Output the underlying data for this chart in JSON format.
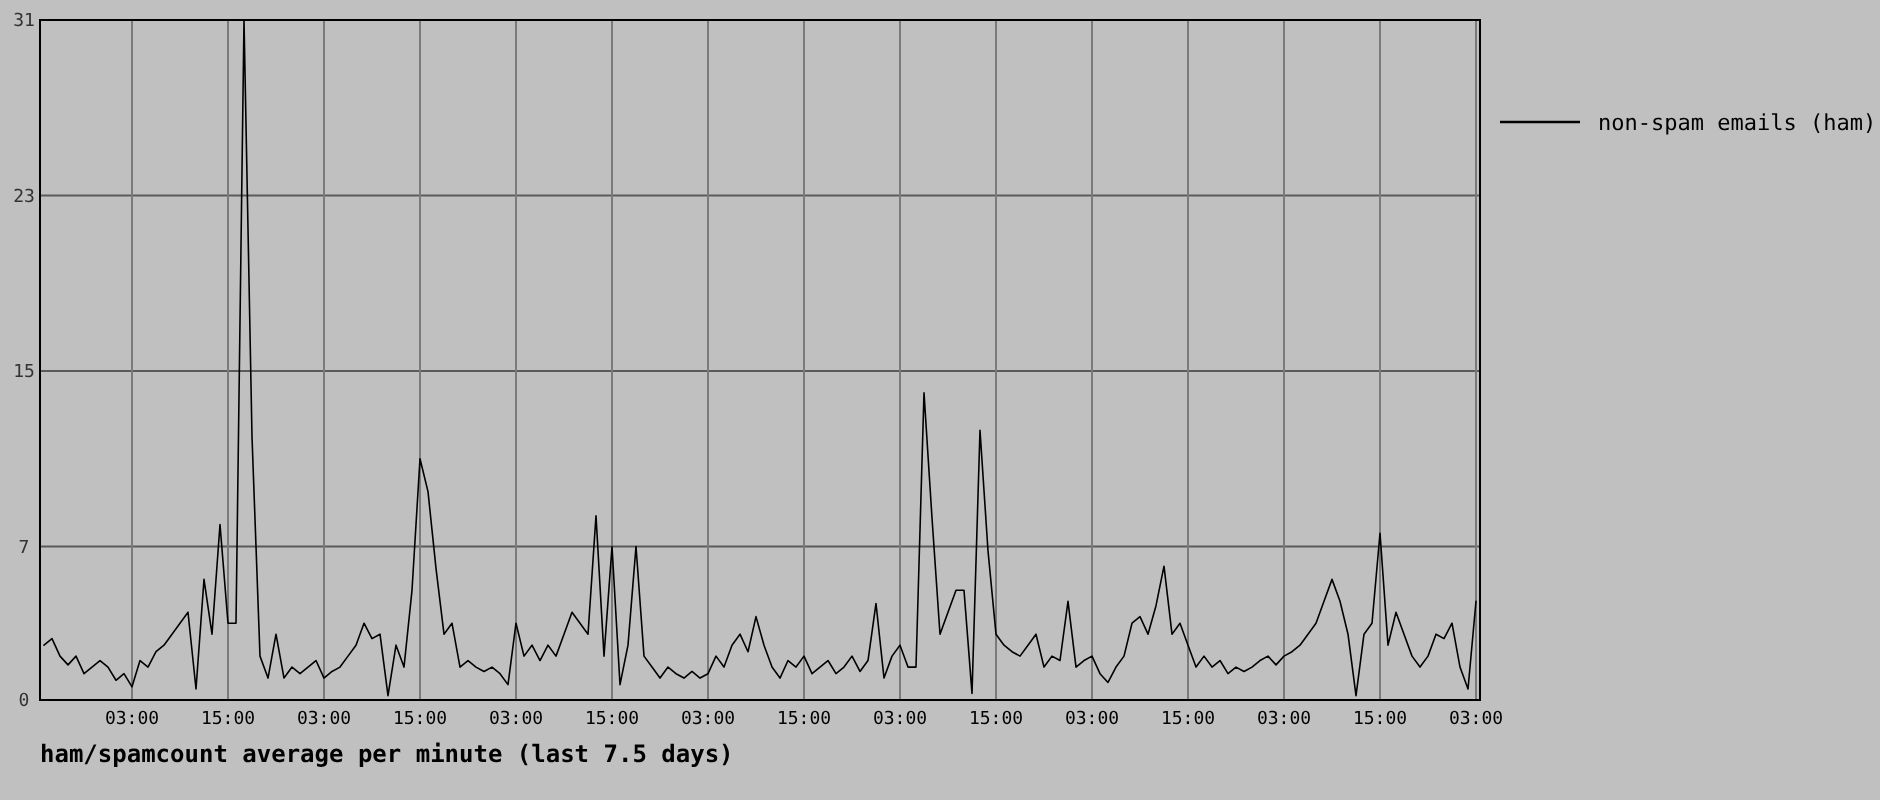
{
  "chart_data": {
    "type": "line",
    "title": "ham/spamcount average per minute (last 7.5 days)",
    "categories": [
      null,
      null,
      null,
      null,
      null,
      null,
      null,
      null,
      null,
      null,
      null,
      "03:00",
      null,
      null,
      null,
      null,
      null,
      null,
      null,
      null,
      null,
      null,
      null,
      "15:00",
      null,
      null,
      null,
      null,
      null,
      null,
      null,
      null,
      null,
      null,
      null,
      "03:00",
      null,
      null,
      null,
      null,
      null,
      null,
      null,
      null,
      null,
      null,
      null,
      "15:00",
      null,
      null,
      null,
      null,
      null,
      null,
      null,
      null,
      null,
      null,
      null,
      "03:00",
      null,
      null,
      null,
      null,
      null,
      null,
      null,
      null,
      null,
      null,
      null,
      "15:00",
      null,
      null,
      null,
      null,
      null,
      null,
      null,
      null,
      null,
      null,
      null,
      "03:00",
      null,
      null,
      null,
      null,
      null,
      null,
      null,
      null,
      null,
      null,
      null,
      "15:00",
      null,
      null,
      null,
      null,
      null,
      null,
      null,
      null,
      null,
      null,
      null,
      "03:00",
      null,
      null,
      null,
      null,
      null,
      null,
      null,
      null,
      null,
      null,
      null,
      "15:00",
      null,
      null,
      null,
      null,
      null,
      null,
      null,
      null,
      null,
      null,
      null,
      "03:00",
      null,
      null,
      null,
      null,
      null,
      null,
      null,
      null,
      null,
      null,
      null,
      "15:00",
      null,
      null,
      null,
      null,
      null,
      null,
      null,
      null,
      null,
      null,
      null,
      "03:00",
      null,
      null,
      null,
      null,
      null,
      null,
      null,
      null,
      null,
      null,
      null,
      "15:00",
      null,
      null,
      null,
      null,
      null,
      null,
      null,
      null,
      null,
      null,
      null,
      "03:00"
    ],
    "series": [
      {
        "name": "non-spam emails (ham)",
        "color": "#000000",
        "values": [
          2.5,
          2.8,
          2,
          1.6,
          2,
          1.2,
          1.5,
          1.8,
          1.5,
          0.9,
          1.2,
          0.6,
          1.8,
          1.5,
          2.2,
          2.5,
          3,
          3.5,
          4,
          0.5,
          5.5,
          3,
          8,
          3.5,
          3.5,
          31,
          12,
          2,
          1,
          3,
          1,
          1.5,
          1.2,
          1.5,
          1.8,
          1,
          1.3,
          1.5,
          2,
          2.5,
          3.5,
          2.8,
          3,
          0.2,
          2.5,
          1.5,
          5,
          11,
          9.5,
          6,
          3,
          3.5,
          1.5,
          1.8,
          1.5,
          1.3,
          1.5,
          1.2,
          0.7,
          3.5,
          2,
          2.5,
          1.8,
          2.5,
          2,
          3,
          4,
          3.5,
          3,
          8.4,
          2,
          7,
          0.7,
          2.5,
          7,
          2,
          1.5,
          1,
          1.5,
          1.2,
          1,
          1.3,
          1,
          1.2,
          2,
          1.5,
          2.5,
          3,
          2.2,
          3.8,
          2.5,
          1.5,
          1,
          1.8,
          1.5,
          2,
          1.2,
          1.5,
          1.8,
          1.2,
          1.5,
          2,
          1.3,
          1.8,
          4.4,
          1,
          2,
          2.5,
          1.5,
          1.5,
          14,
          8.3,
          3,
          4,
          5,
          5,
          0.3,
          12.3,
          6.8,
          3,
          2.5,
          2.2,
          2,
          2.5,
          3,
          1.5,
          2,
          1.8,
          4.5,
          1.5,
          1.8,
          2,
          1.2,
          0.8,
          1.5,
          2,
          3.5,
          3.8,
          3,
          4.3,
          6.1,
          3,
          3.5,
          2.5,
          1.5,
          2,
          1.5,
          1.8,
          1.2,
          1.5,
          1.3,
          1.5,
          1.8,
          2,
          1.6,
          2,
          2.2,
          2.5,
          3,
          3.5,
          4.5,
          5.5,
          4.5,
          3,
          0.2,
          3,
          3.5,
          7.6,
          2.5,
          4,
          3,
          2,
          1.5,
          2,
          3,
          2.8,
          3.5,
          1.5,
          0.5,
          4.5
        ]
      }
    ],
    "ylim": [
      0,
      31
    ],
    "yticks": [
      0,
      7,
      15,
      23,
      31
    ],
    "grid": true,
    "legend": "right",
    "line_style": "solid"
  }
}
